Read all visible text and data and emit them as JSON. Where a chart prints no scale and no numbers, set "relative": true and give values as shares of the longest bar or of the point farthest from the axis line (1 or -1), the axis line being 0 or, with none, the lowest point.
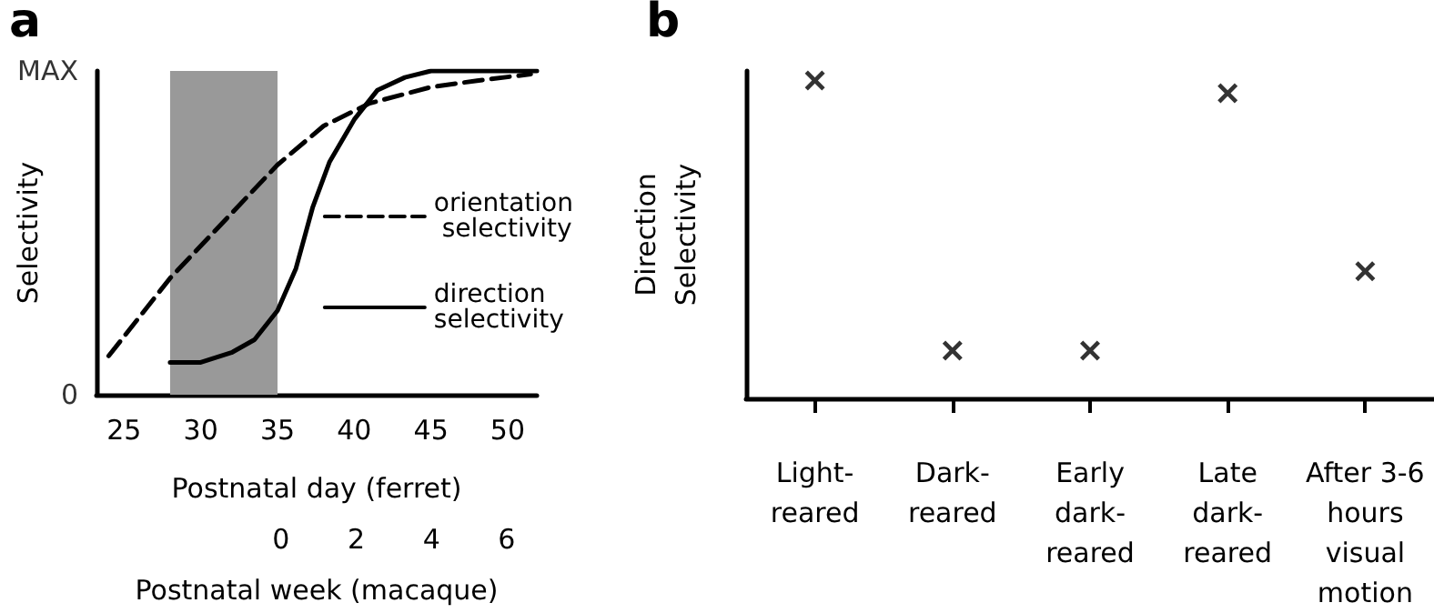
{
  "chart_data": [
    {
      "type": "line",
      "title": "a",
      "xlabel": "Postnatal day (ferret)",
      "x2label": "Postnatal week (macaque)",
      "ylabel": "Selectivity",
      "xlim": [
        23.2,
        51.9
      ],
      "xticks": [
        25,
        30,
        35,
        40,
        45,
        50
      ],
      "x2lim": [
        -4.9,
        6.8
      ],
      "x2ticks": [
        0,
        2,
        4,
        6
      ],
      "relative": true,
      "annotations": [
        "0",
        "MAX"
      ],
      "grid": false,
      "legend": "right",
      "marker": "none",
      "bands": [
        {
          "axis": "x",
          "from": 28,
          "to": 35,
          "color": "#999999"
        }
      ],
      "series": [
        {
          "name": "orientation selectivity",
          "color": "#000000",
          "line_style": "dashed",
          "x": [
            24,
            28,
            32,
            35,
            38,
            41,
            45,
            48,
            51.5
          ],
          "values": [
            0.12,
            0.36,
            0.56,
            0.71,
            0.83,
            0.9,
            0.95,
            0.97,
            0.99
          ]
        },
        {
          "name": "direction selectivity",
          "color": "#000000",
          "line_style": "solid",
          "x": [
            28,
            30,
            32,
            33.5,
            35,
            36.2,
            37.3,
            38.4,
            40,
            41.5,
            43.3,
            45,
            51.9
          ],
          "values": [
            0.1,
            0.1,
            0.13,
            0.17,
            0.26,
            0.39,
            0.58,
            0.72,
            0.85,
            0.94,
            0.98,
            1,
            1
          ]
        }
      ]
    },
    {
      "type": "scatter",
      "title": "b",
      "ylabel": "Direction\nSelectivity",
      "relative": true,
      "tick_labels": "x",
      "grid": false,
      "marker": "cross",
      "categories": [
        "Light-\nreared",
        "Dark-\nreared",
        "Early\ndark-\nreared",
        "Late\ndark-\nreared",
        "After 3-6\nhours\nvisual\nmotion"
      ],
      "series": [
        {
          "color": "#000000",
          "values": [
            1,
            0.15,
            0.15,
            0.96,
            0.4
          ]
        }
      ]
    }
  ]
}
